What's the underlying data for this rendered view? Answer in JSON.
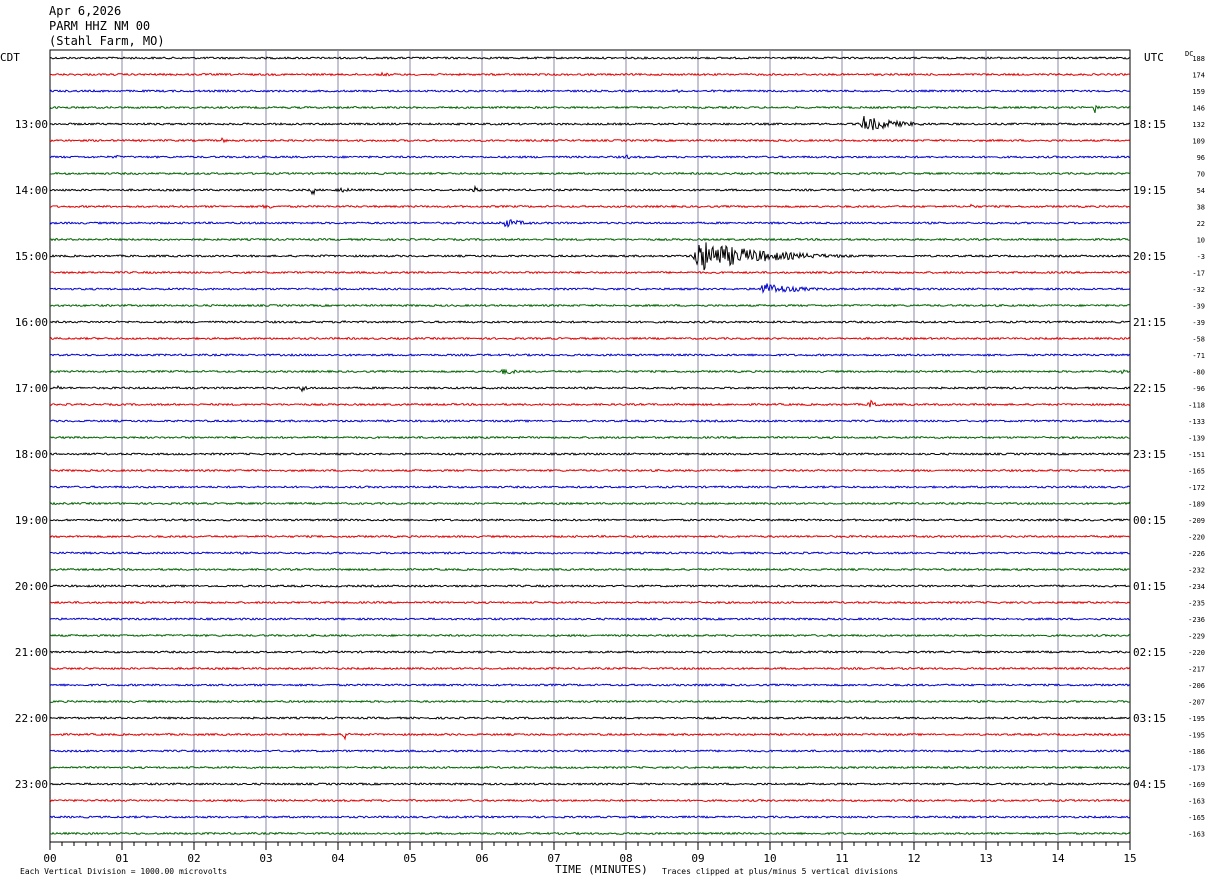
{
  "header": {
    "date": "Apr 6,2026",
    "station": "PARM HHZ NM 00",
    "location": "(Stahl Farm, MO)"
  },
  "chart_data": {
    "type": "line",
    "title": "",
    "left_timezone": "CDT",
    "right_timezone": "UTC",
    "dc_label": "DC",
    "xlabel": "TIME (MINUTES)",
    "x_ticks": [
      "00",
      "01",
      "02",
      "03",
      "04",
      "05",
      "06",
      "07",
      "08",
      "09",
      "10",
      "11",
      "12",
      "13",
      "14",
      "15"
    ],
    "xlim": [
      0,
      15
    ],
    "rows_per_hour": 4,
    "minutes_per_row": 15,
    "trace_colors": [
      "#000000",
      "#e00000",
      "#0000cc",
      "#006400"
    ],
    "left_hour_labels": [
      {
        "row": 4,
        "label": "13:00"
      },
      {
        "row": 8,
        "label": "14:00"
      },
      {
        "row": 12,
        "label": "15:00"
      },
      {
        "row": 16,
        "label": "16:00"
      },
      {
        "row": 20,
        "label": "17:00"
      },
      {
        "row": 24,
        "label": "18:00"
      },
      {
        "row": 28,
        "label": "19:00"
      },
      {
        "row": 32,
        "label": "20:00"
      },
      {
        "row": 36,
        "label": "21:00"
      },
      {
        "row": 40,
        "label": "22:00"
      },
      {
        "row": 44,
        "label": "23:00"
      }
    ],
    "right_hour_labels": [
      {
        "row": 4,
        "label": "18:15"
      },
      {
        "row": 8,
        "label": "19:15"
      },
      {
        "row": 12,
        "label": "20:15"
      },
      {
        "row": 16,
        "label": "21:15"
      },
      {
        "row": 20,
        "label": "22:15"
      },
      {
        "row": 24,
        "label": "23:15"
      },
      {
        "row": 28,
        "label": "00:15"
      },
      {
        "row": 32,
        "label": "01:15"
      },
      {
        "row": 36,
        "label": "02:15"
      },
      {
        "row": 40,
        "label": "03:15"
      },
      {
        "row": 44,
        "label": "04:15"
      }
    ],
    "dc_offsets": [
      "188",
      "174",
      "159",
      "146",
      "132",
      "109",
      "96",
      "70",
      "54",
      "38",
      "22",
      "10",
      "-3",
      "-17",
      "-32",
      "-39",
      "-39",
      "-58",
      "-71",
      "-80",
      "-96",
      "-118",
      "-133",
      "-139",
      "-151",
      "-165",
      "-172",
      "-189",
      "-209",
      "-220",
      "-226",
      "-232",
      "-234",
      "-235",
      "-236",
      "-229",
      "-220",
      "-217",
      "-206",
      "-207",
      "-195",
      "-195",
      "-186",
      "-173",
      "-169",
      "-163",
      "-165",
      "-163"
    ],
    "events": [
      {
        "row": 1,
        "minute": 4.6,
        "amplitude": 0.6,
        "duration": 0.6
      },
      {
        "row": 2,
        "minute": 8.7,
        "amplitude": 0.5,
        "duration": 0.6
      },
      {
        "row": 3,
        "minute": 14.5,
        "amplitude": 2.5,
        "duration": 0.1
      },
      {
        "row": 4,
        "minute": 11.3,
        "amplitude": 2.5,
        "duration": 1.0
      },
      {
        "row": 5,
        "minute": 2.4,
        "amplitude": 1.0,
        "duration": 0.1
      },
      {
        "row": 6,
        "minute": 0.9,
        "amplitude": 0.6,
        "duration": 0.3
      },
      {
        "row": 6,
        "minute": 8.0,
        "amplitude": 0.8,
        "duration": 0.2
      },
      {
        "row": 8,
        "minute": 3.65,
        "amplitude": 2.5,
        "duration": 0.05
      },
      {
        "row": 8,
        "minute": 4.0,
        "amplitude": 0.8,
        "duration": 0.6
      },
      {
        "row": 8,
        "minute": 5.9,
        "amplitude": 1.2,
        "duration": 0.15
      },
      {
        "row": 9,
        "minute": 3.0,
        "amplitude": 1.2,
        "duration": 0.2
      },
      {
        "row": 9,
        "minute": 12.8,
        "amplitude": 0.8,
        "duration": 0.2
      },
      {
        "row": 10,
        "minute": 6.3,
        "amplitude": 1.5,
        "duration": 0.6
      },
      {
        "row": 12,
        "minute": 3.8,
        "amplitude": 0.8,
        "duration": 0.1
      },
      {
        "row": 12,
        "minute": 9.0,
        "amplitude": 5.0,
        "duration": 1.8
      },
      {
        "row": 14,
        "minute": 9.9,
        "amplitude": 2.0,
        "duration": 1.0
      },
      {
        "row": 16,
        "minute": 4.1,
        "amplitude": 1.0,
        "duration": 0.15
      },
      {
        "row": 19,
        "minute": 6.3,
        "amplitude": 1.0,
        "duration": 0.5
      },
      {
        "row": 19,
        "minute": 14.9,
        "amplitude": 1.0,
        "duration": 0.15
      },
      {
        "row": 20,
        "minute": 0.1,
        "amplitude": 0.8,
        "duration": 0.15
      },
      {
        "row": 20,
        "minute": 3.5,
        "amplitude": 1.2,
        "duration": 0.2
      },
      {
        "row": 21,
        "minute": 11.4,
        "amplitude": 1.5,
        "duration": 0.25
      },
      {
        "row": 41,
        "minute": 4.1,
        "amplitude": 1.5,
        "duration": 0.15
      }
    ]
  },
  "footer": {
    "vertical_division": "Each Vertical Division = 1000.00 microvolts",
    "clip_note": "Traces clipped at plus/minus 5 vertical divisions"
  }
}
